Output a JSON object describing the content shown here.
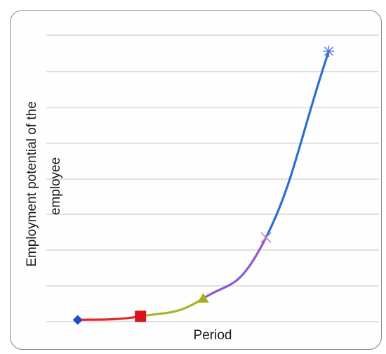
{
  "chart_data": {
    "type": "line",
    "title": "",
    "xlabel": "Period",
    "ylabel": "Employment potential of the employee",
    "ylabel_lines": [
      "Employment potential of the",
      "employee"
    ],
    "grid": true,
    "legend": "none",
    "x": [
      1,
      2,
      3,
      4,
      5
    ],
    "ylim": [
      0,
      8
    ],
    "xlim": [
      0.5,
      5.8
    ],
    "points": [
      {
        "x": 1,
        "y": 0.05,
        "marker": "diamond",
        "color": "#1f4fbf"
      },
      {
        "x": 2,
        "y": 0.15,
        "marker": "square",
        "color": "#d9141e"
      },
      {
        "x": 3,
        "y": 0.65,
        "marker": "triangle",
        "color": "#a6ad1e"
      },
      {
        "x": 4,
        "y": 2.35,
        "marker": "x",
        "color": "#c77bc7"
      },
      {
        "x": 5,
        "y": 7.55,
        "marker": "star",
        "color": "#4a74d6"
      }
    ],
    "segment_colors": [
      "#e3262b",
      "#a8b52a",
      "#8a5bd6",
      "#2c6fd0"
    ]
  }
}
